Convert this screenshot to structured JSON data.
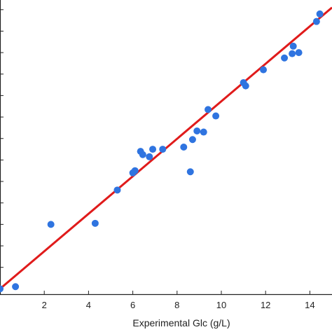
{
  "chart_data": {
    "type": "scatter",
    "xlabel": "Experimental Glc (g/L)",
    "ylabel": "",
    "title": "",
    "xlim": [
      0,
      15
    ],
    "x_ticks": [
      2,
      4,
      6,
      8,
      10,
      12,
      14
    ],
    "grid": false,
    "legend": "none",
    "colors": {
      "points": "#2f74e0",
      "fit_line": "#e01b1b",
      "axis": "#222222"
    },
    "series": [
      {
        "points": [
          {
            "x": 0.0,
            "y": 0.0
          },
          {
            "x": 0.7,
            "y": 0.1
          },
          {
            "x": 2.3,
            "y": 3.0
          },
          {
            "x": 4.3,
            "y": 3.05
          },
          {
            "x": 5.3,
            "y": 4.6
          },
          {
            "x": 6.0,
            "y": 5.4
          },
          {
            "x": 6.1,
            "y": 5.5
          },
          {
            "x": 6.35,
            "y": 6.4
          },
          {
            "x": 6.45,
            "y": 6.25
          },
          {
            "x": 6.75,
            "y": 6.15
          },
          {
            "x": 6.9,
            "y": 6.5
          },
          {
            "x": 7.35,
            "y": 6.5
          },
          {
            "x": 8.3,
            "y": 6.6
          },
          {
            "x": 8.6,
            "y": 5.45
          },
          {
            "x": 8.7,
            "y": 6.95
          },
          {
            "x": 8.9,
            "y": 7.35
          },
          {
            "x": 9.2,
            "y": 7.3
          },
          {
            "x": 9.4,
            "y": 8.35
          },
          {
            "x": 9.75,
            "y": 8.05
          },
          {
            "x": 11.0,
            "y": 9.6
          },
          {
            "x": 11.1,
            "y": 9.45
          },
          {
            "x": 11.9,
            "y": 10.2
          },
          {
            "x": 12.85,
            "y": 10.75
          },
          {
            "x": 13.2,
            "y": 10.95
          },
          {
            "x": 13.25,
            "y": 11.3
          },
          {
            "x": 13.5,
            "y": 11.0
          },
          {
            "x": 14.3,
            "y": 12.45
          },
          {
            "x": 14.45,
            "y": 12.8
          }
        ]
      }
    ],
    "fit_line": {
      "x": [
        0,
        15
      ],
      "y": [
        0.0,
        13.1
      ]
    }
  }
}
